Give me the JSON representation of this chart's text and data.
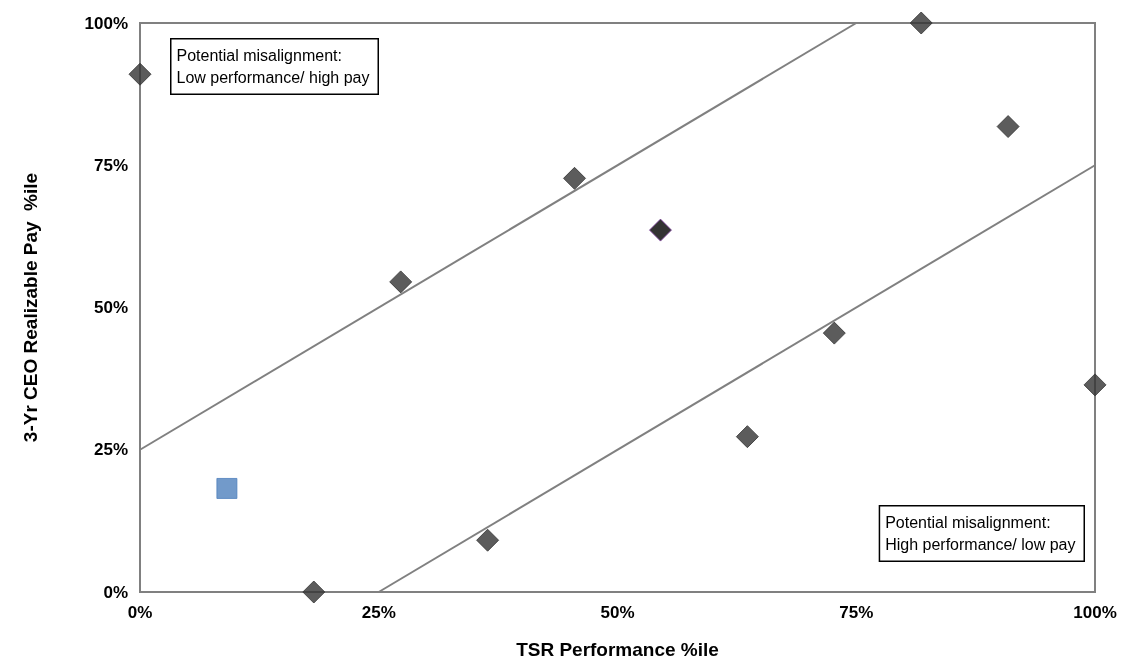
{
  "chart_data": {
    "type": "scatter",
    "xlabel": "TSR Performance %ile",
    "ylabel": "3-Yr CEO Realizable Pay  %ile",
    "xlim": [
      0,
      100
    ],
    "ylim": [
      0,
      100
    ],
    "xticks": [
      {
        "value": 0,
        "label": "0%"
      },
      {
        "value": 25,
        "label": "25%"
      },
      {
        "value": 50,
        "label": "50%"
      },
      {
        "value": 75,
        "label": "75%"
      },
      {
        "value": 100,
        "label": "100%"
      }
    ],
    "yticks": [
      {
        "value": 0,
        "label": "0%"
      },
      {
        "value": 25,
        "label": "25%"
      },
      {
        "value": 50,
        "label": "50%"
      },
      {
        "value": 75,
        "label": "75%"
      },
      {
        "value": 100,
        "label": "100%"
      }
    ],
    "grid": false,
    "annotations": [
      "Potential misalignment:\nLow performance/ high pay",
      "Potential misalignment:\nHigh performance/ low pay"
    ],
    "series": [
      {
        "type": "line",
        "color": "#808080",
        "marker": "none",
        "x": [
          0,
          75
        ],
        "values": [
          25,
          100
        ]
      },
      {
        "type": "line",
        "color": "#808080",
        "marker": "none",
        "x": [
          25,
          100
        ],
        "values": [
          0,
          75
        ]
      },
      {
        "color": "#333333",
        "marker": "diamond",
        "x": [
          0,
          27.3,
          45.5,
          81.8,
          90.9,
          72.7,
          63.6,
          100,
          36.4,
          18.2
        ],
        "values": [
          91,
          54.5,
          72.7,
          100,
          81.8,
          45.5,
          27.3,
          36.4,
          9.1,
          0
        ]
      },
      {
        "color": "#000000",
        "marker": "diamond",
        "x": [
          54.5
        ],
        "values": [
          63.6
        ]
      },
      {
        "color": "#4f81bd",
        "marker": "square",
        "x": [
          9.1
        ],
        "values": [
          18.2
        ]
      }
    ]
  }
}
